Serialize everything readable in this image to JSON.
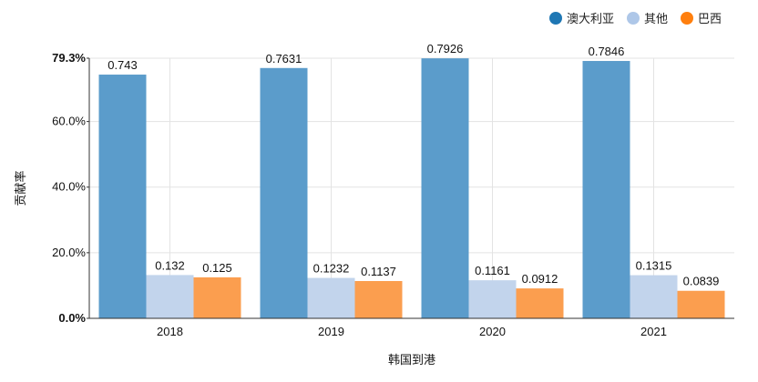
{
  "chart_data": {
    "type": "bar",
    "categories": [
      "2018",
      "2019",
      "2020",
      "2021"
    ],
    "series": [
      {
        "name": "澳大利亚",
        "color": "#5b9ccb",
        "values": [
          0.743,
          0.7631,
          0.7926,
          0.7846
        ],
        "labels": [
          "0.743",
          "0.7631",
          "0.7926",
          "0.7846"
        ]
      },
      {
        "name": "其他",
        "color": "#c2d4ec",
        "values": [
          0.132,
          0.1232,
          0.1161,
          0.1315
        ],
        "labels": [
          "0.132",
          "0.1232",
          "0.1161",
          "0.1315"
        ]
      },
      {
        "name": "巴西",
        "color": "#fb9e4f",
        "values": [
          0.125,
          0.1137,
          0.0912,
          0.0839
        ],
        "labels": [
          "0.125",
          "0.1137",
          "0.0912",
          "0.0839"
        ]
      }
    ],
    "legend_colors": [
      "#1f77b4",
      "#aec7e8",
      "#ff7f0e"
    ],
    "xlabel": "韩国到港",
    "ylabel": "贡献率",
    "ylim": [
      0,
      0.793
    ],
    "yticks": [
      {
        "value": 0,
        "label": "0.0%"
      },
      {
        "value": 0.2,
        "label": "20.0%"
      },
      {
        "value": 0.4,
        "label": "40.0%"
      },
      {
        "value": 0.6,
        "label": "60.0%"
      },
      {
        "value": 0.793,
        "label": "79.3%"
      }
    ],
    "grid": true,
    "legend_position": "top-right"
  }
}
